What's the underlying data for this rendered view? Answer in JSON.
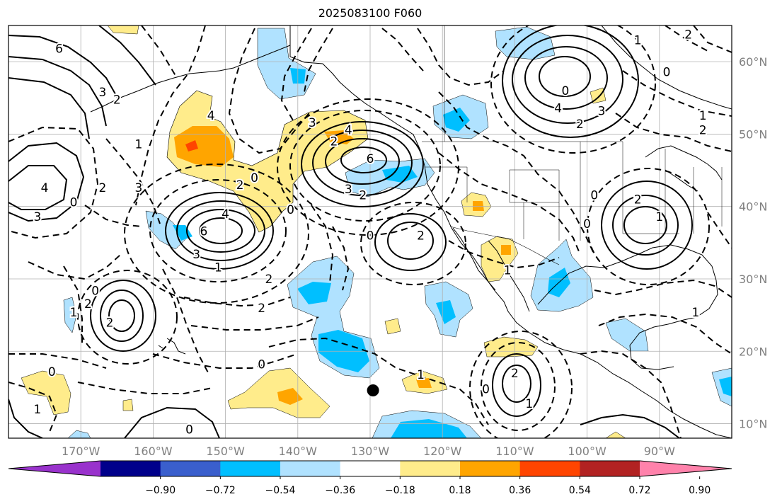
{
  "title": "2025083100 F060",
  "map": {
    "extent": {
      "lon_min": -180,
      "lon_max": -80,
      "lat_min": 8,
      "lat_max": 65
    },
    "lon_ticks": [
      {
        "lon": -170,
        "label": "170°W"
      },
      {
        "lon": -160,
        "label": "160°W"
      },
      {
        "lon": -150,
        "label": "150°W"
      },
      {
        "lon": -140,
        "label": "140°W"
      },
      {
        "lon": -130,
        "label": "130°W"
      },
      {
        "lon": -120,
        "label": "120°W"
      },
      {
        "lon": -110,
        "label": "110°W"
      },
      {
        "lon": -100,
        "label": "100°W"
      },
      {
        "lon": -90,
        "label": "90°W"
      }
    ],
    "lat_ticks": [
      {
        "lat": 60,
        "label": "60°N"
      },
      {
        "lat": 50,
        "label": "50°N"
      },
      {
        "lat": 40,
        "label": "40°N"
      },
      {
        "lat": 30,
        "label": "30°N"
      },
      {
        "lat": 20,
        "label": "20°N"
      },
      {
        "lat": 10,
        "label": "10°N"
      }
    ],
    "marker": {
      "lon": -129.6,
      "lat": 14.6
    },
    "contour_labels": [
      {
        "text": "6",
        "lon": -173,
        "lat": 61.8
      },
      {
        "text": "3",
        "lon": -167,
        "lat": 55.8
      },
      {
        "text": "2",
        "lon": -165,
        "lat": 54.8
      },
      {
        "text": "1",
        "lon": -162,
        "lat": 48.6
      },
      {
        "text": "4",
        "lon": -175,
        "lat": 42.6
      },
      {
        "text": "3",
        "lon": -176,
        "lat": 38.6
      },
      {
        "text": "0",
        "lon": -171,
        "lat": 40.6
      },
      {
        "text": "2",
        "lon": -167,
        "lat": 42.6
      },
      {
        "text": "3",
        "lon": -162,
        "lat": 42.6
      },
      {
        "text": "4",
        "lon": -152,
        "lat": 52.6
      },
      {
        "text": "2",
        "lon": -148,
        "lat": 43.0
      },
      {
        "text": "0",
        "lon": -146,
        "lat": 44.0
      },
      {
        "text": "0",
        "lon": -141,
        "lat": 39.6
      },
      {
        "text": "4",
        "lon": -150,
        "lat": 39.0
      },
      {
        "text": "6",
        "lon": -153,
        "lat": 36.6
      },
      {
        "text": "3",
        "lon": -154,
        "lat": 33.4
      },
      {
        "text": "1",
        "lon": -151,
        "lat": 31.6
      },
      {
        "text": "3",
        "lon": -138,
        "lat": 51.6
      },
      {
        "text": "2",
        "lon": -135,
        "lat": 49.0
      },
      {
        "text": "4",
        "lon": -133,
        "lat": 50.6
      },
      {
        "text": "6",
        "lon": -130,
        "lat": 46.6
      },
      {
        "text": "3",
        "lon": -133,
        "lat": 42.4
      },
      {
        "text": "2",
        "lon": -131,
        "lat": 41.6
      },
      {
        "text": "0",
        "lon": -130,
        "lat": 36.0
      },
      {
        "text": "2",
        "lon": -123,
        "lat": 36.0
      },
      {
        "text": "2",
        "lon": -144,
        "lat": 30.0
      },
      {
        "text": "2",
        "lon": -145,
        "lat": 26.0
      },
      {
        "text": "0",
        "lon": -168,
        "lat": 28.4
      },
      {
        "text": "2",
        "lon": -169,
        "lat": 26.6
      },
      {
        "text": "1",
        "lon": -171,
        "lat": 25.4
      },
      {
        "text": "2",
        "lon": -166,
        "lat": 24.0
      },
      {
        "text": "0",
        "lon": -145,
        "lat": 18.2
      },
      {
        "text": "0",
        "lon": -174,
        "lat": 17.2
      },
      {
        "text": "1",
        "lon": -176,
        "lat": 12.0
      },
      {
        "text": "0",
        "lon": -155,
        "lat": 9.2
      },
      {
        "text": "1",
        "lon": -123,
        "lat": 16.8
      },
      {
        "text": "0",
        "lon": -114,
        "lat": 14.8
      },
      {
        "text": "2",
        "lon": -110,
        "lat": 17.0
      },
      {
        "text": "1",
        "lon": -108,
        "lat": 12.8
      },
      {
        "text": "1",
        "lon": -111,
        "lat": 31.2
      },
      {
        "text": "0",
        "lon": -100,
        "lat": 37.6
      },
      {
        "text": "0",
        "lon": -99,
        "lat": 41.6
      },
      {
        "text": "2",
        "lon": -93,
        "lat": 41.0
      },
      {
        "text": "1",
        "lon": -90,
        "lat": 38.6
      },
      {
        "text": "1",
        "lon": -85,
        "lat": 25.4
      },
      {
        "text": "4",
        "lon": -104,
        "lat": 53.6
      },
      {
        "text": "0",
        "lon": -103,
        "lat": 56.0
      },
      {
        "text": "2",
        "lon": -101,
        "lat": 51.4
      },
      {
        "text": "3",
        "lon": -98,
        "lat": 53.2
      },
      {
        "text": "0",
        "lon": -89,
        "lat": 58.6
      },
      {
        "text": "1",
        "lon": -93,
        "lat": 63.0
      },
      {
        "text": "2",
        "lon": -86,
        "lat": 63.8
      },
      {
        "text": "2",
        "lon": -84,
        "lat": 50.6
      },
      {
        "text": "1",
        "lon": -84,
        "lat": 52.6
      }
    ]
  },
  "colorbar": {
    "labels": [
      "−0.90",
      "−0.72",
      "−0.54",
      "−0.36",
      "−0.18",
      "0.18",
      "0.36",
      "0.54",
      "0.72",
      "0.90"
    ],
    "colors": [
      "#9932cc",
      "#00008b",
      "#3a5fcd",
      "#00bfff",
      "#b0e2ff",
      "#ffffff",
      "#ffec8b",
      "#ffa500",
      "#ff4500",
      "#b22222",
      "#ff82ab"
    ]
  }
}
